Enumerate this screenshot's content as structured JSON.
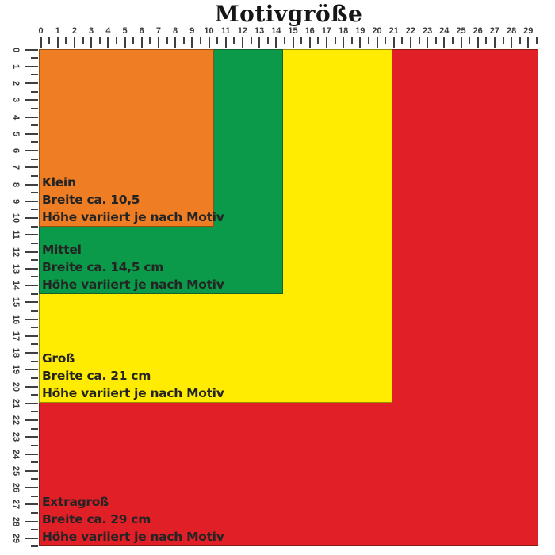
{
  "title": "Motivgröße",
  "ruler": {
    "numbers": [
      "0",
      "1",
      "2",
      "3",
      "4",
      "5",
      "6",
      "7",
      "8",
      "9",
      "10",
      "11",
      "12",
      "13",
      "14",
      "15",
      "16",
      "17",
      "18",
      "19",
      "20",
      "21",
      "22",
      "23",
      "24",
      "25",
      "26",
      "27",
      "28",
      "29"
    ]
  },
  "sizes": [
    {
      "id": "klein",
      "name": "Klein",
      "width_label": "Breite ca. 10,5",
      "height_label": "Höhe variiert je nach Motiv",
      "width_cm": "10,5",
      "color": "#EE7D23"
    },
    {
      "id": "mittel",
      "name": "Mittel",
      "width_label": "Breite ca. 14,5 cm",
      "height_label": "Höhe variiert je nach Motiv",
      "width_cm": "14,5",
      "color": "#0B9A49"
    },
    {
      "id": "gross",
      "name": "Groß",
      "width_label": "Breite ca. 21 cm",
      "height_label": "Höhe variiert je nach Motiv",
      "width_cm": "21",
      "color": "#FFEC00"
    },
    {
      "id": "extragross",
      "name": "Extragroß",
      "width_label": "Breite ca. 29 cm",
      "height_label": "Höhe variiert je nach Motiv",
      "width_cm": "29",
      "color": "#E01F26"
    }
  ],
  "colors": {
    "background": "#ffffff",
    "ruler": "#3f3f3f",
    "label_text": "#242424",
    "title_text": "#161616"
  }
}
